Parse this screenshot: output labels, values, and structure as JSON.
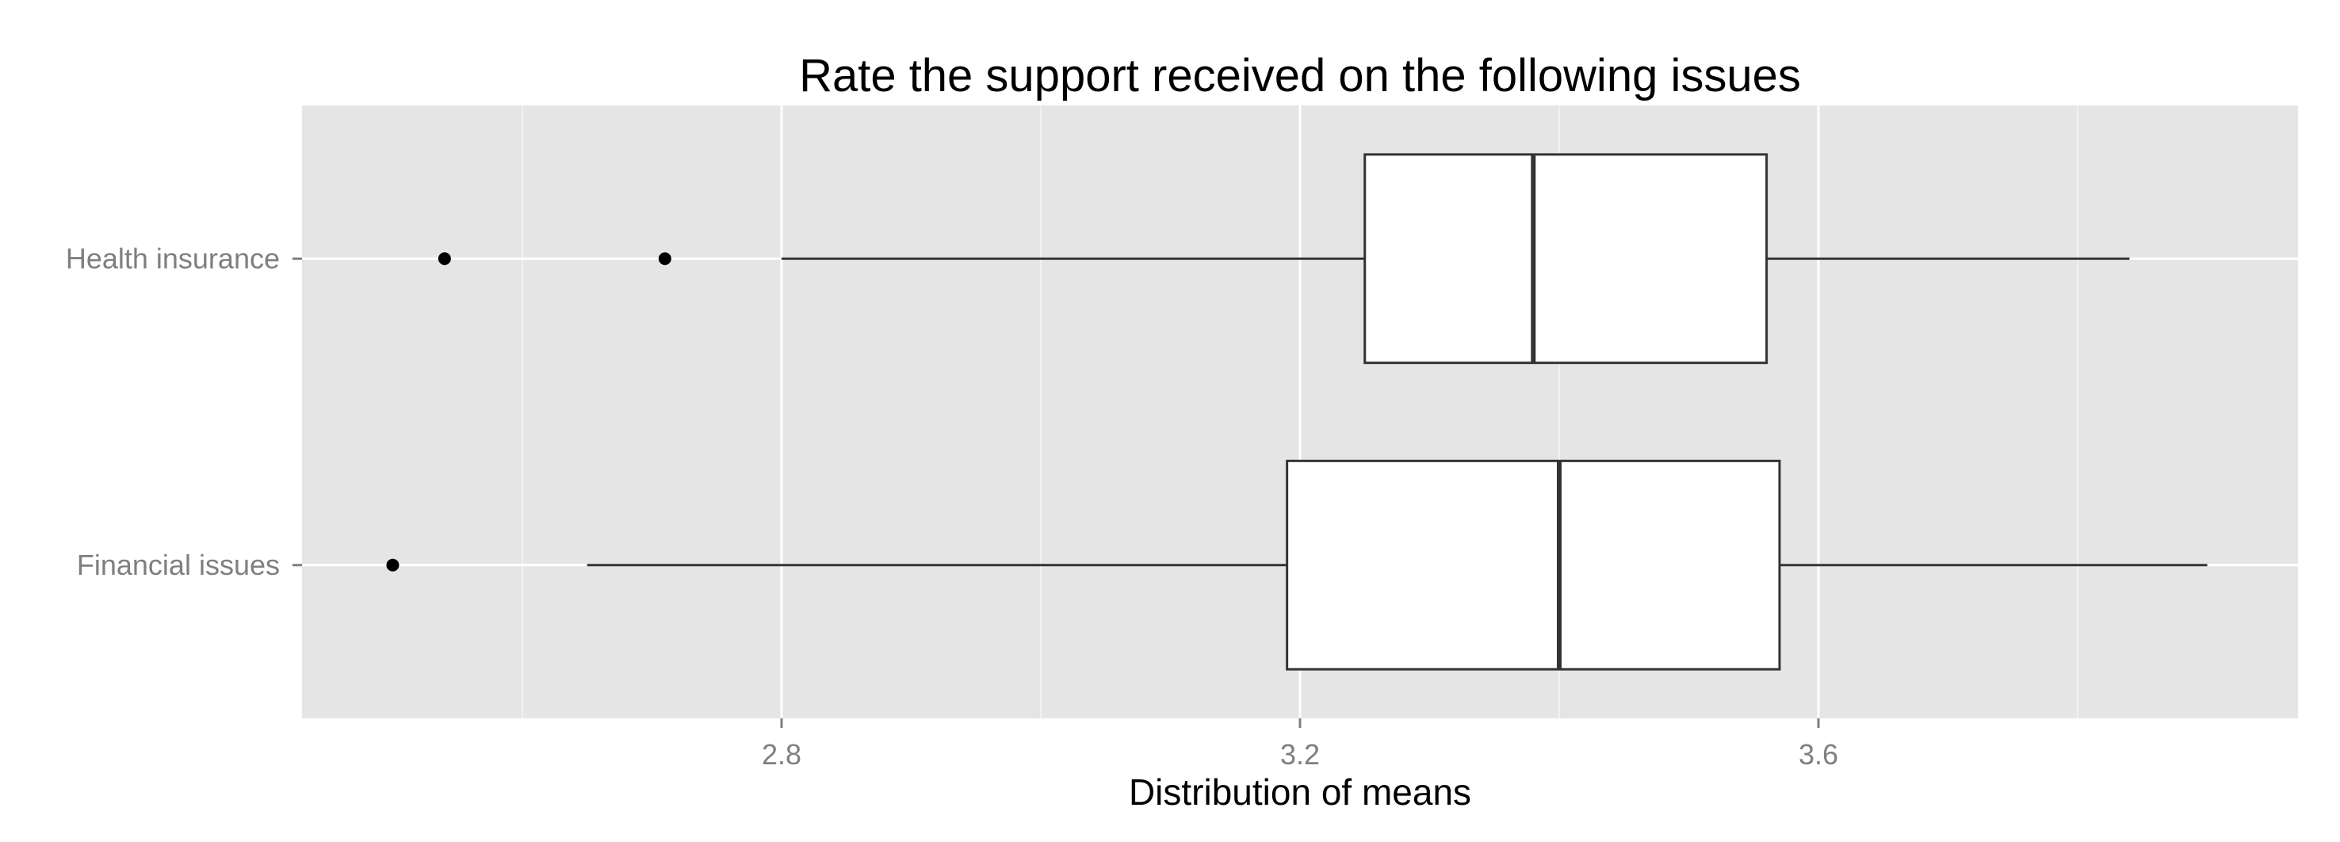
{
  "chart_data": {
    "type": "boxplot",
    "orientation": "horizontal",
    "title": "Rate the support received on the following issues",
    "xlabel": "Distribution of means",
    "ylabel": "",
    "xlim": [
      2.43,
      3.97
    ],
    "x_ticks": [
      2.8,
      3.2,
      3.6
    ],
    "x_tick_labels": [
      "2.8",
      "3.2",
      "3.6"
    ],
    "x_minor_gridlines": [
      2.6,
      3.0,
      3.4,
      3.8
    ],
    "grid": true,
    "categories": [
      "Health insurance",
      "Financial issues"
    ],
    "boxes": [
      {
        "category": "Health insurance",
        "whisker_low": 2.8,
        "q1": 3.25,
        "median": 3.38,
        "q3": 3.56,
        "whisker_high": 3.84,
        "outliers": [
          2.54,
          2.71
        ]
      },
      {
        "category": "Financial issues",
        "whisker_low": 2.65,
        "q1": 3.19,
        "median": 3.4,
        "q3": 3.57,
        "whisker_high": 3.9,
        "outliers": [
          2.5
        ]
      }
    ]
  },
  "colors": {
    "panel_background": "#e5e5e5",
    "gridline": "#ffffff",
    "box_fill": "#ffffff",
    "box_stroke": "#333333",
    "outlier": "#000000",
    "tick_label": "#7f7f7f"
  }
}
